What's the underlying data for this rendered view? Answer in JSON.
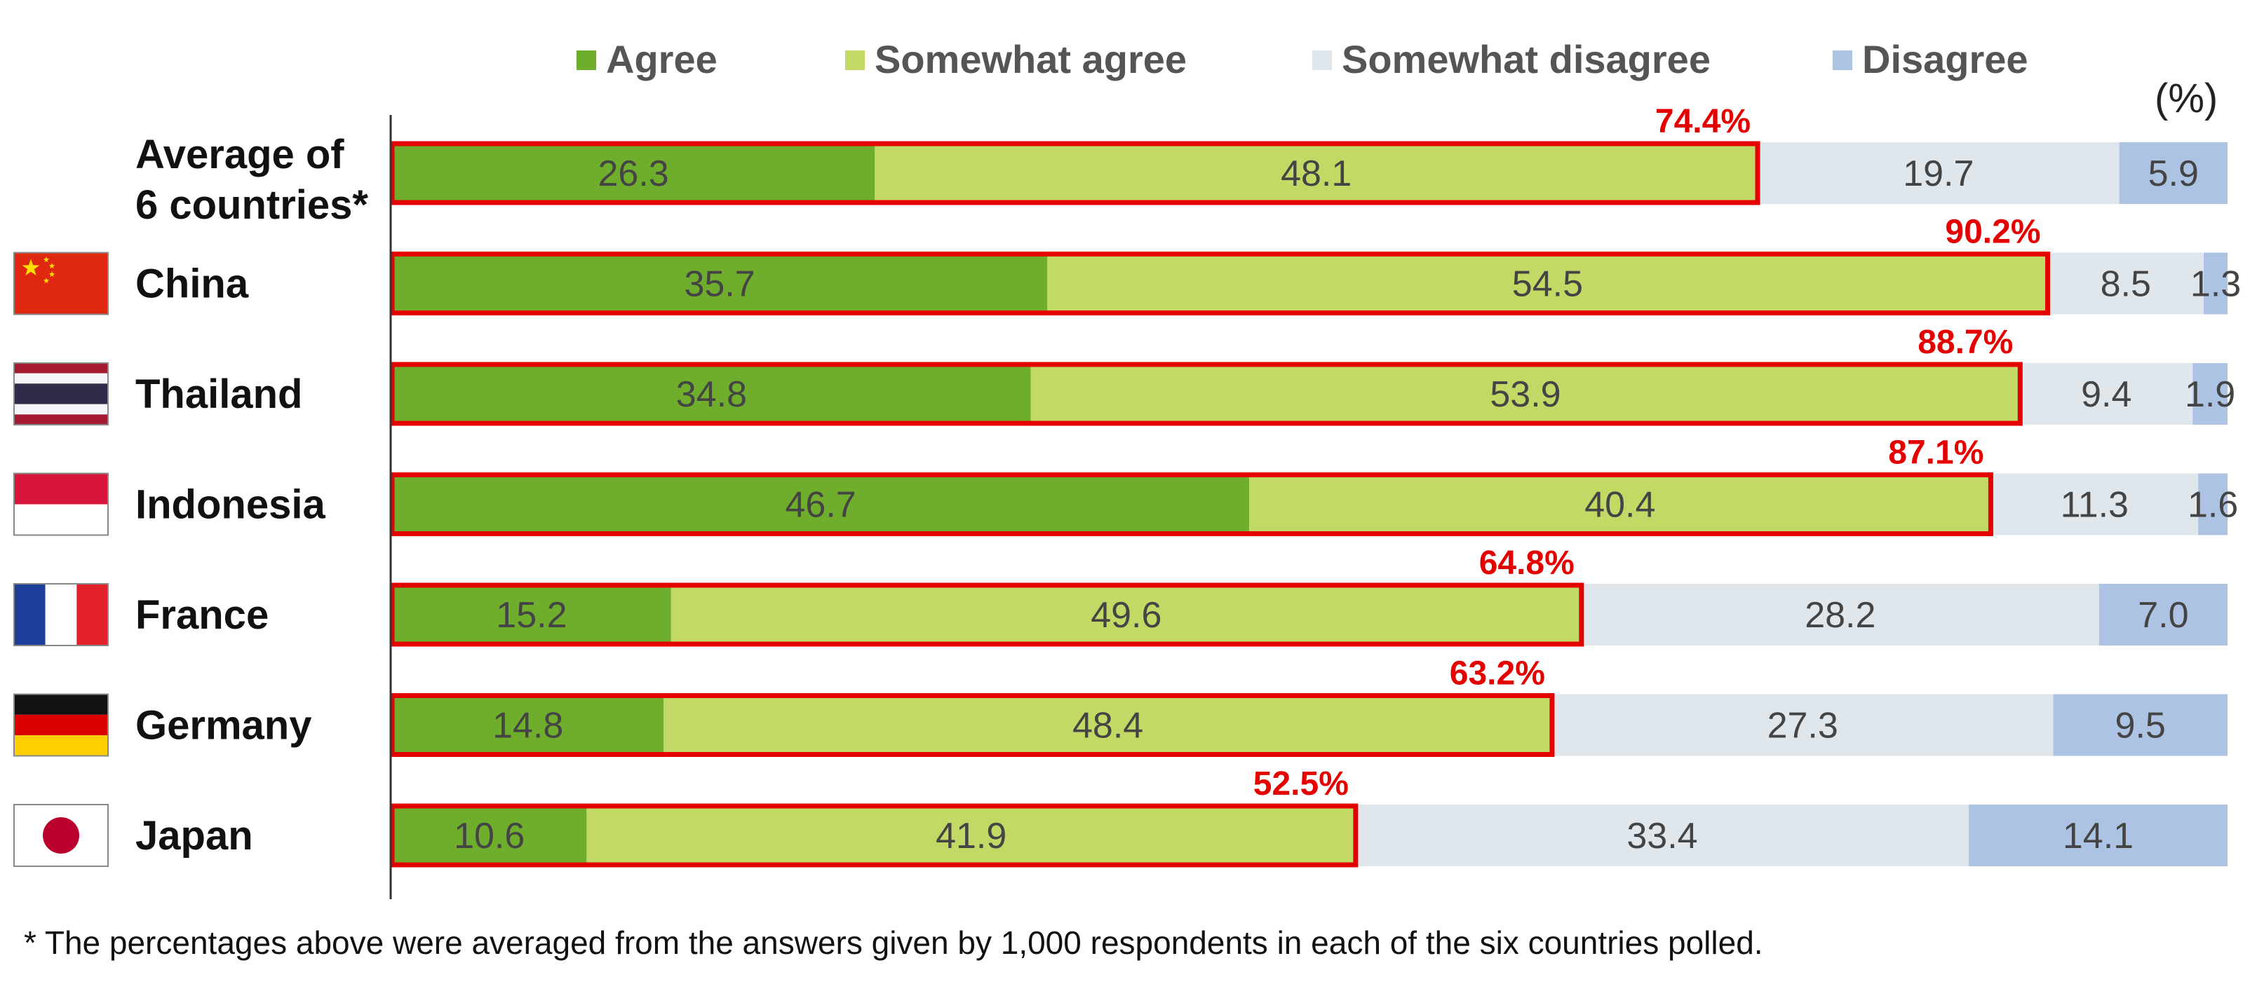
{
  "chart_data": {
    "type": "bar",
    "orientation": "horizontal",
    "stacked": true,
    "unit_label": "(%)",
    "legend_position": "top",
    "categories": [
      "Average of 6 countries*",
      "China",
      "Thailand",
      "Indonesia",
      "France",
      "Germany",
      "Japan"
    ],
    "series": [
      {
        "name": "Agree",
        "color": "#6fae2d",
        "values": [
          26.3,
          35.7,
          34.8,
          46.7,
          15.2,
          14.8,
          10.6
        ]
      },
      {
        "name": "Somewhat agree",
        "color": "#c3d966",
        "values": [
          48.1,
          54.5,
          53.9,
          40.4,
          49.6,
          48.4,
          41.9
        ]
      },
      {
        "name": "Somewhat disagree",
        "color": "#dfe6ec",
        "values": [
          19.7,
          8.5,
          9.4,
          11.3,
          28.2,
          27.3,
          33.4
        ]
      },
      {
        "name": "Disagree",
        "color": "#adc3e3",
        "values": [
          5.9,
          1.3,
          1.9,
          1.6,
          7.0,
          9.5,
          14.1
        ]
      }
    ],
    "segment_labels": [
      [
        "26.3",
        "48.1",
        "19.7",
        "5.9"
      ],
      [
        "35.7",
        "54.5",
        "8.5",
        "1.3"
      ],
      [
        "34.8",
        "53.9",
        "9.4",
        "1.9"
      ],
      [
        "46.7",
        "40.4",
        "11.3",
        "1.6"
      ],
      [
        "15.2",
        "49.6",
        "28.2",
        "7.0"
      ],
      [
        "14.8",
        "48.4",
        "27.3",
        "9.5"
      ],
      [
        "10.6",
        "41.9",
        "33.4",
        "14.1"
      ]
    ],
    "agree_totals": [
      74.4,
      90.2,
      88.7,
      87.1,
      64.8,
      63.2,
      52.5
    ],
    "agree_total_labels": [
      "74.4%",
      "90.2%",
      "88.7%",
      "87.1%",
      "64.8%",
      "63.2%",
      "52.5%"
    ],
    "highlight_color": "#e50000",
    "xlim": [
      0,
      100
    ],
    "flags": [
      null,
      "china-flag",
      "thailand-flag",
      "indonesia-flag",
      "france-flag",
      "germany-flag",
      "japan-flag"
    ]
  },
  "footnote": "* The percentages above were averaged from the answers given by 1,000 respondents in each of the six countries polled."
}
